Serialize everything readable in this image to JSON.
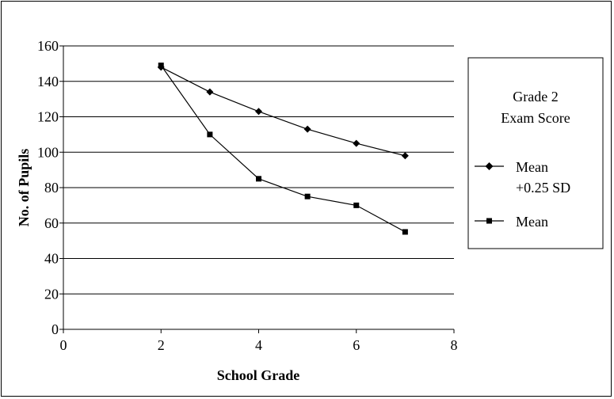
{
  "chart_data": {
    "type": "line",
    "xlabel": "School Grade",
    "ylabel": "No. of Pupils",
    "xlim": [
      0,
      8
    ],
    "ylim": [
      0,
      160
    ],
    "x_ticks": [
      "0",
      "2",
      "4",
      "6",
      "8"
    ],
    "y_ticks": [
      "0",
      "20",
      "40",
      "60",
      "80",
      "100",
      "120",
      "140",
      "160"
    ],
    "grid": "horizontal",
    "legend": {
      "placement": "right",
      "title_lines": [
        "Grade 2",
        "Exam Score"
      ]
    },
    "series": [
      {
        "name_lines": [
          "Mean",
          "+0.25 SD"
        ],
        "marker": "diamond",
        "x": [
          2,
          3,
          4,
          5,
          6,
          7
        ],
        "y": [
          148,
          134,
          123,
          113,
          105,
          98
        ]
      },
      {
        "name_lines": [
          "Mean"
        ],
        "marker": "square",
        "x": [
          2,
          3,
          4,
          5,
          6,
          7
        ],
        "y": [
          149,
          110,
          85,
          75,
          70,
          55
        ]
      }
    ]
  }
}
